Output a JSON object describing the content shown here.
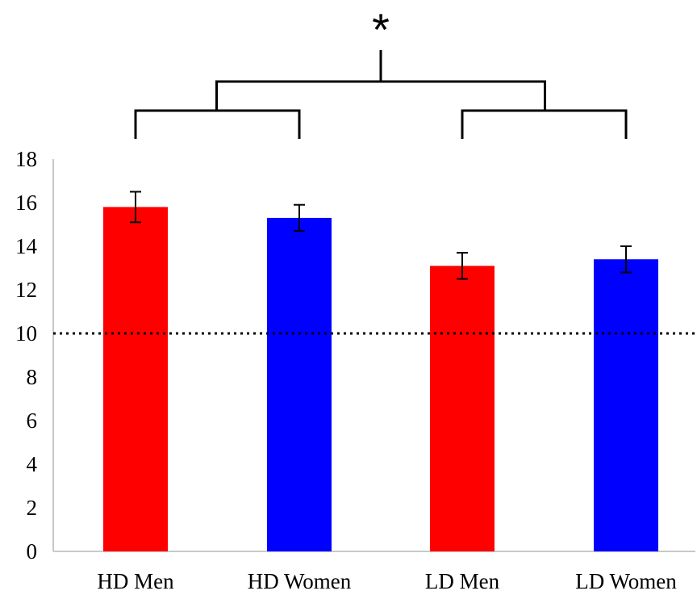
{
  "chart_data": {
    "type": "bar",
    "categories": [
      "HD Men",
      "HD Women",
      "LD Men",
      "LD Women"
    ],
    "values": [
      15.8,
      15.3,
      13.1,
      13.4
    ],
    "errors": [
      0.7,
      0.6,
      0.6,
      0.6
    ],
    "bar_colors": [
      "#ff0000",
      "#0000ff",
      "#ff0000",
      "#0000ff"
    ],
    "ylim": [
      0,
      18
    ],
    "yticks": [
      0,
      2,
      4,
      6,
      8,
      10,
      12,
      14,
      16,
      18
    ],
    "reference_line": 10,
    "reference_line_style": "dotted",
    "grid": false,
    "legend": "none",
    "significance": {
      "symbol": "*",
      "left_group": [
        "HD Men",
        "HD Women"
      ],
      "right_group": [
        "LD Men",
        "LD Women"
      ]
    },
    "title": "",
    "xlabel": "",
    "ylabel": ""
  }
}
